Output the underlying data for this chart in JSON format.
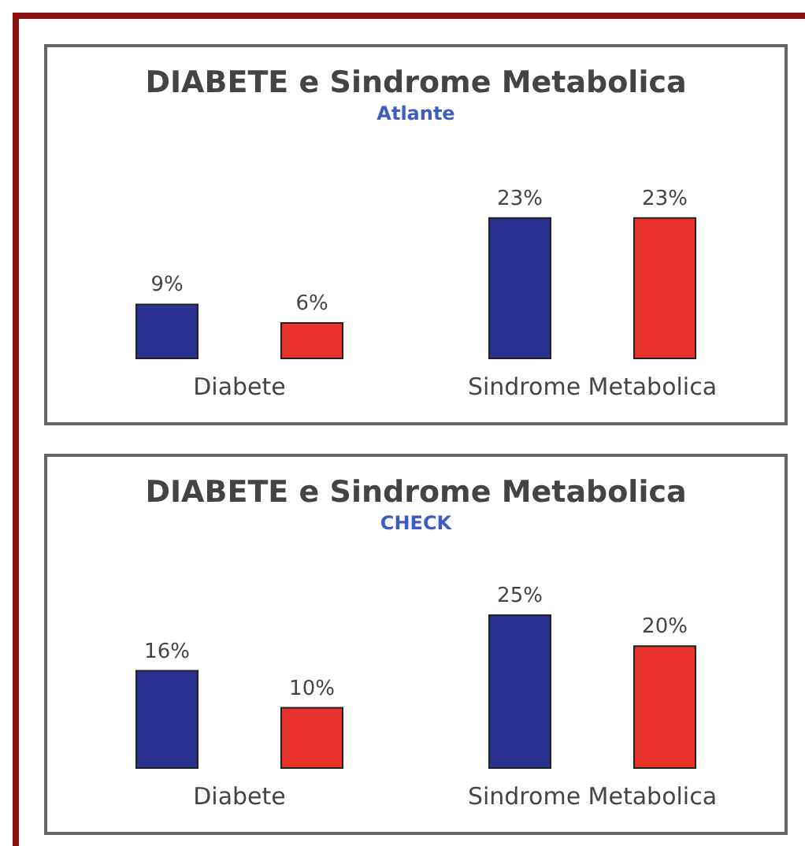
{
  "chart_data": [
    {
      "type": "bar",
      "title": "DIABETE e Sindrome Metabolica",
      "subtitle": "Atlante",
      "categories": [
        "Diabete",
        "Sindrome Metabolica"
      ],
      "series": [
        {
          "color": "#2b3190",
          "values": [
            9,
            23
          ],
          "value_labels": [
            "9%",
            "23%"
          ]
        },
        {
          "color": "#e8312b",
          "values": [
            6,
            23
          ],
          "value_labels": [
            "6%",
            "23%"
          ]
        }
      ]
    },
    {
      "type": "bar",
      "title": "DIABETE e Sindrome Metabolica",
      "subtitle": "CHECK",
      "categories": [
        "Diabete",
        "Sindrome Metabolica"
      ],
      "series": [
        {
          "color": "#2b3190",
          "values": [
            16,
            25
          ],
          "value_labels": [
            "16%",
            "25%"
          ]
        },
        {
          "color": "#e8312b",
          "values": [
            10,
            20
          ],
          "value_labels": [
            "10%",
            "20%"
          ]
        }
      ]
    }
  ]
}
